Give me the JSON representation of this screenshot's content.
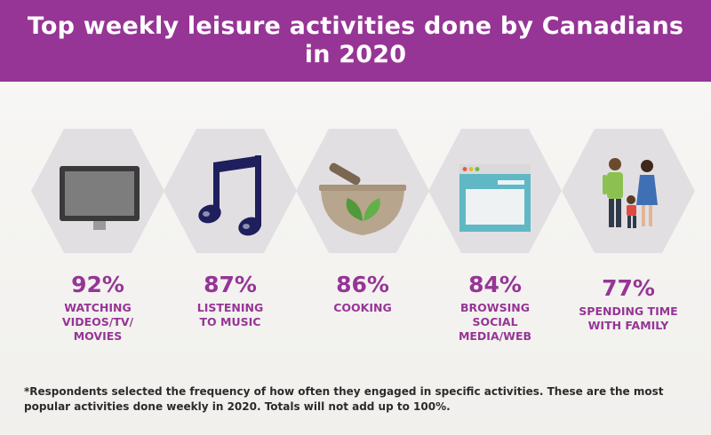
{
  "title": "Top weekly leisure activities done by Canadians in 2020",
  "chart_data": {
    "type": "table",
    "title": "Top weekly leisure activities done by Canadians in 2020",
    "unit": "%",
    "categories": [
      "WATCHING VIDEOS/TV/ MOVIES",
      "LISTENING TO MUSIC",
      "COOKING",
      "BROWSING SOCIAL MEDIA/WEB",
      "SPENDING TIME WITH FAMILY"
    ],
    "values": [
      92,
      87,
      86,
      84,
      77
    ],
    "value_labels": [
      "92%",
      "87%",
      "86%",
      "84%",
      "77%"
    ],
    "label_lines": [
      [
        "WATCHING",
        "VIDEOS/TV/",
        "MOVIES"
      ],
      [
        "LISTENING",
        "TO MUSIC"
      ],
      [
        "COOKING"
      ],
      [
        "BROWSING",
        "SOCIAL",
        "MEDIA/WEB"
      ],
      [
        "SPENDING TIME",
        "WITH FAMILY"
      ]
    ],
    "icons": [
      "tv-icon",
      "music-note-icon",
      "mortar-pestle-icon",
      "browser-window-icon",
      "family-icon"
    ]
  },
  "footnote": "*Respondents selected the frequency of how often they engaged in specific activities. These are the most popular activities done weekly in 2020. Totals will not add up to 100%.",
  "colors": {
    "accent": "#963596",
    "hexagon": "#e2dfe2",
    "background": "#f5f4f1"
  }
}
